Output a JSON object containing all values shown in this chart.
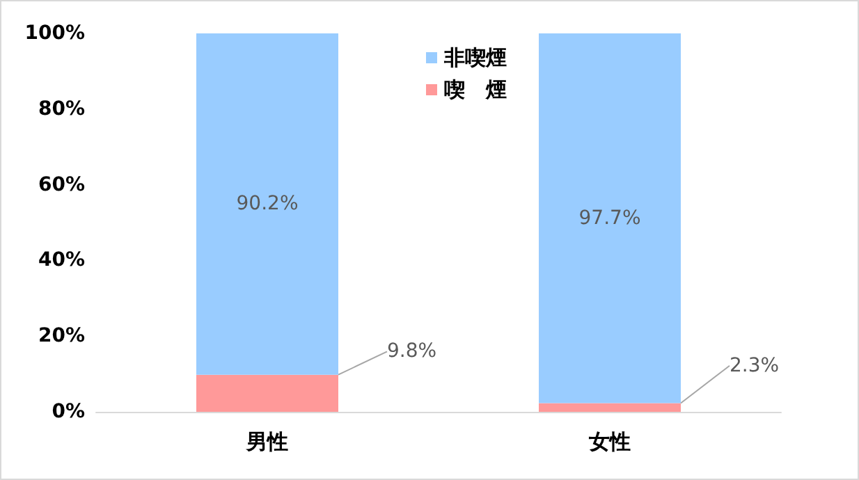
{
  "chart_data": {
    "type": "bar",
    "categories": [
      "男性",
      "女性"
    ],
    "stacked": true,
    "series": [
      {
        "name": "喫　煙",
        "color": "#ff9999",
        "values": [
          9.8,
          2.3
        ],
        "value_labels": [
          "9.8%",
          "2.3%"
        ]
      },
      {
        "name": "非喫煙",
        "color": "#99ccff",
        "values": [
          90.2,
          97.7
        ],
        "value_labels": [
          "90.2%",
          "97.7%"
        ]
      }
    ],
    "ylim": [
      0,
      100
    ],
    "yticks": [
      {
        "value": 0,
        "label": "0%"
      },
      {
        "value": 20,
        "label": "20%"
      },
      {
        "value": 40,
        "label": "40%"
      },
      {
        "value": 60,
        "label": "60%"
      },
      {
        "value": 80,
        "label": "80%"
      },
      {
        "value": 100,
        "label": "100%"
      }
    ],
    "grid": false,
    "legend": "top"
  }
}
